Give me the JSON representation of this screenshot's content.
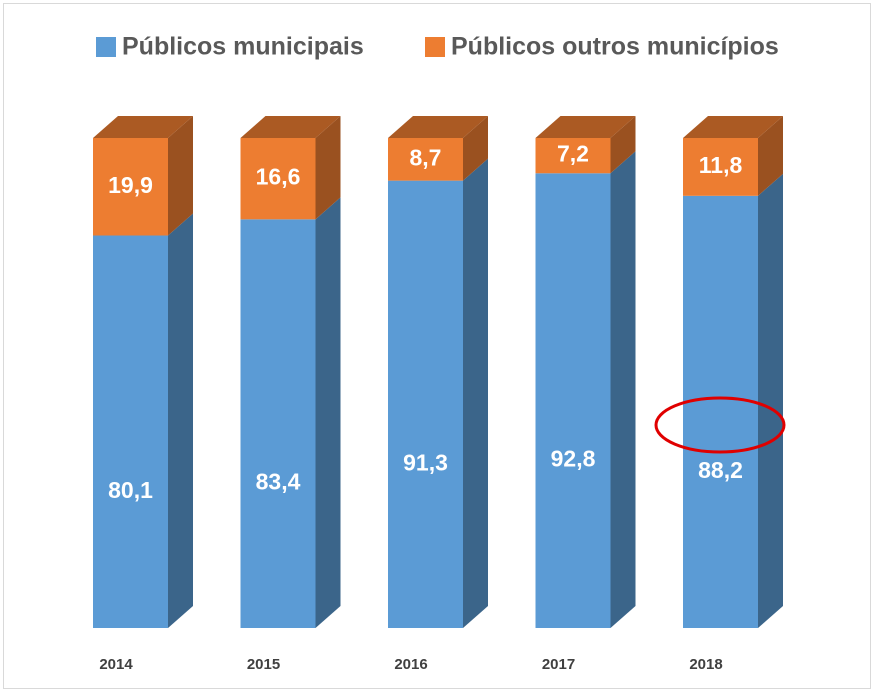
{
  "chart_data": {
    "type": "bar3d_stacked",
    "categories": [
      "2014",
      "2015",
      "2016",
      "2017",
      "2018"
    ],
    "series": [
      {
        "name": "Públicos municipais",
        "color": "#5b9bd5",
        "values": [
          80.1,
          83.4,
          91.3,
          92.8,
          88.2
        ],
        "value_labels": [
          "80,1",
          "83,4",
          "91,3",
          "92,8",
          "88,2"
        ]
      },
      {
        "name": "Públicos outros municípios",
        "color": "#ed7d31",
        "values": [
          19.9,
          16.6,
          8.7,
          7.2,
          11.8
        ],
        "value_labels": [
          "19,9",
          "16,6",
          "8,7",
          "7,2",
          "11,8"
        ]
      }
    ],
    "ylim": [
      0,
      100
    ],
    "legend": "top"
  }
}
